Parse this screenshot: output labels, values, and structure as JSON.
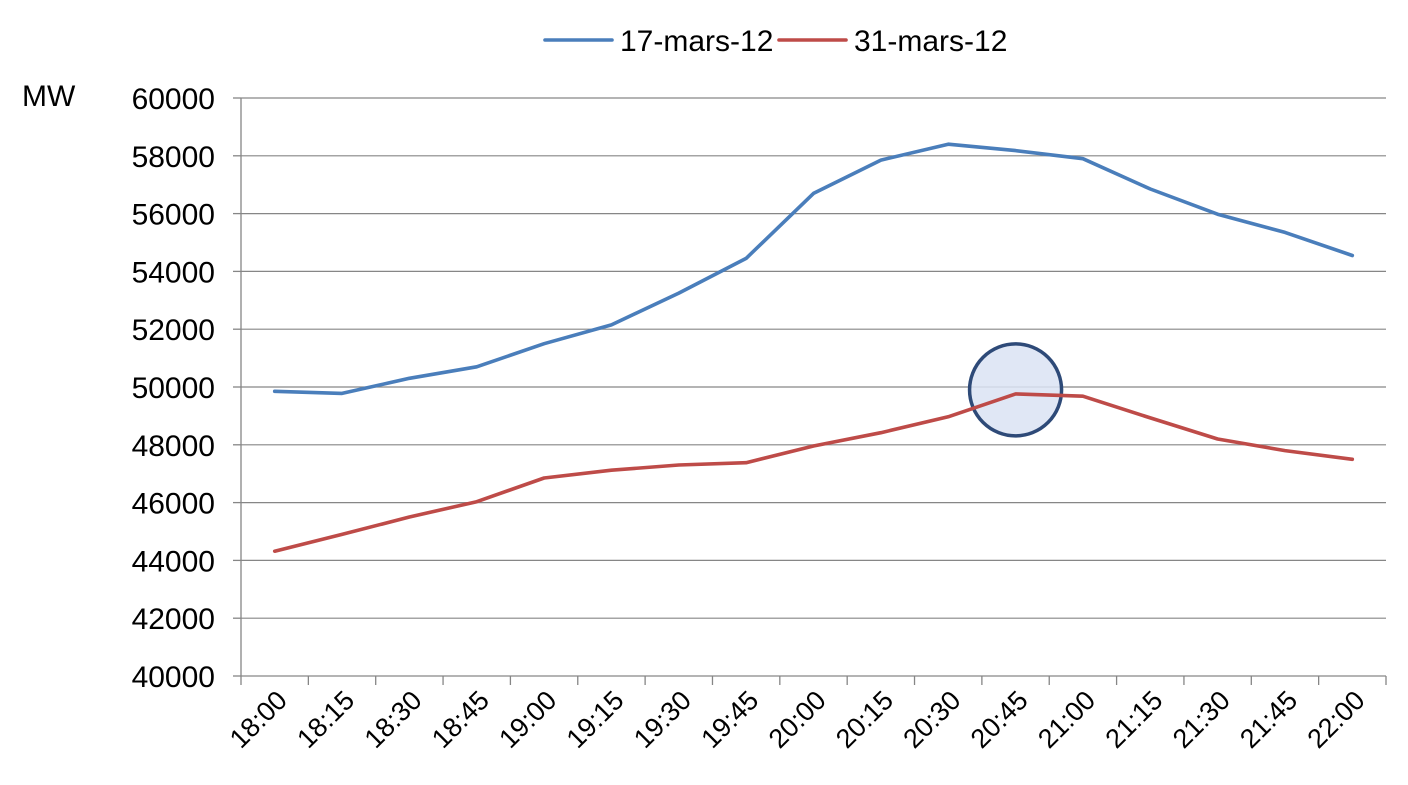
{
  "chart_data": {
    "type": "line",
    "title": "",
    "xlabel": "",
    "ylabel": "MW",
    "ylim": [
      40000,
      60000
    ],
    "yticks": [
      40000,
      42000,
      44000,
      46000,
      48000,
      50000,
      52000,
      54000,
      56000,
      58000,
      60000
    ],
    "categories": [
      "18:00",
      "18:15",
      "18:30",
      "18:45",
      "19:00",
      "19:15",
      "19:30",
      "19:45",
      "20:00",
      "20:15",
      "20:30",
      "20:45",
      "21:00",
      "21:15",
      "21:30",
      "21:45",
      "22:00"
    ],
    "grid": true,
    "legend_position": "top",
    "series": [
      {
        "name": "17-mars-12",
        "color": "#4a7ebb",
        "values": [
          49850,
          49780,
          50300,
          50700,
          51500,
          52150,
          53250,
          54450,
          56700,
          57850,
          58400,
          58180,
          57900,
          56850,
          55980,
          55350,
          54550
        ]
      },
      {
        "name": "31-mars-12",
        "color": "#be4b48",
        "values": [
          44320,
          44900,
          45500,
          46030,
          46850,
          47120,
          47300,
          47380,
          47960,
          48420,
          48970,
          49760,
          49680,
          48930,
          48200,
          47800,
          47500
        ]
      }
    ],
    "annotations": [
      {
        "type": "circle-highlight",
        "at_category": "20:45",
        "y_value": 49900,
        "fill": "#dbe3f3",
        "stroke": "#2e4a78"
      }
    ]
  }
}
